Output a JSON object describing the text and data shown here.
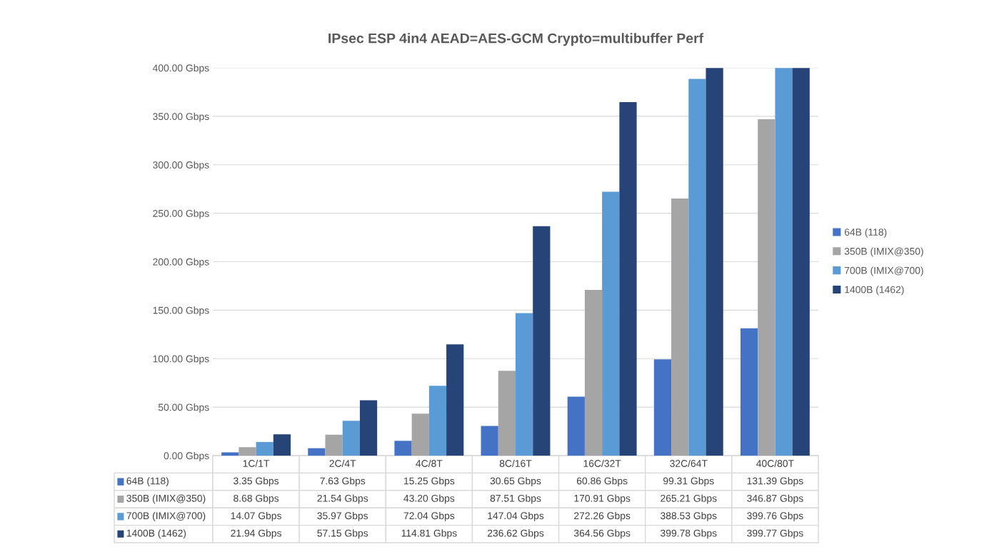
{
  "chart_data": {
    "type": "bar",
    "title": "IPsec ESP 4in4 AEAD=AES-GCM Crypto=multibuffer Perf",
    "categories": [
      "1C/1T",
      "2C/4T",
      "4C/8T",
      "8C/16T",
      "16C/32T",
      "32C/64T",
      "40C/80T"
    ],
    "series": [
      {
        "name": "64B (118)",
        "color": "#4472c4",
        "values": [
          3.35,
          7.63,
          15.25,
          30.65,
          60.86,
          99.31,
          131.39
        ],
        "value_labels": [
          "3.35 Gbps",
          "7.63 Gbps",
          "15.25 Gbps",
          "30.65 Gbps",
          "60.86 Gbps",
          "99.31 Gbps",
          "131.39 Gbps"
        ]
      },
      {
        "name": "350B (IMIX@350)",
        "color": "#a5a5a5",
        "values": [
          8.68,
          21.54,
          43.2,
          87.51,
          170.91,
          265.21,
          346.87
        ],
        "value_labels": [
          "8.68 Gbps",
          "21.54 Gbps",
          "43.20 Gbps",
          "87.51 Gbps",
          "170.91 Gbps",
          "265.21 Gbps",
          "346.87 Gbps"
        ]
      },
      {
        "name": "700B (IMIX@700)",
        "color": "#5b9bd5",
        "values": [
          14.07,
          35.97,
          72.04,
          147.04,
          272.26,
          388.53,
          399.76
        ],
        "value_labels": [
          "14.07 Gbps",
          "35.97 Gbps",
          "72.04 Gbps",
          "147.04 Gbps",
          "272.26 Gbps",
          "388.53 Gbps",
          "399.76 Gbps"
        ]
      },
      {
        "name": "1400B (1462)",
        "color": "#264478",
        "values": [
          21.94,
          57.15,
          114.81,
          236.62,
          364.56,
          399.78,
          399.77
        ],
        "value_labels": [
          "21.94 Gbps",
          "57.15 Gbps",
          "114.81 Gbps",
          "236.62 Gbps",
          "364.56 Gbps",
          "399.78 Gbps",
          "399.77 Gbps"
        ]
      }
    ],
    "ylim": [
      0,
      400
    ],
    "yticks": [
      {
        "value": 0,
        "label": "0.00 Gbps"
      },
      {
        "value": 50,
        "label": "50.00 Gbps"
      },
      {
        "value": 100,
        "label": "100.00 Gbps"
      },
      {
        "value": 150,
        "label": "150.00 Gbps"
      },
      {
        "value": 200,
        "label": "200.00 Gbps"
      },
      {
        "value": 250,
        "label": "250.00 Gbps"
      },
      {
        "value": 300,
        "label": "300.00 Gbps"
      },
      {
        "value": 350,
        "label": "350.00 Gbps"
      },
      {
        "value": 400,
        "label": "400.00 Gbps"
      }
    ],
    "grid": "y",
    "legend": "right"
  }
}
